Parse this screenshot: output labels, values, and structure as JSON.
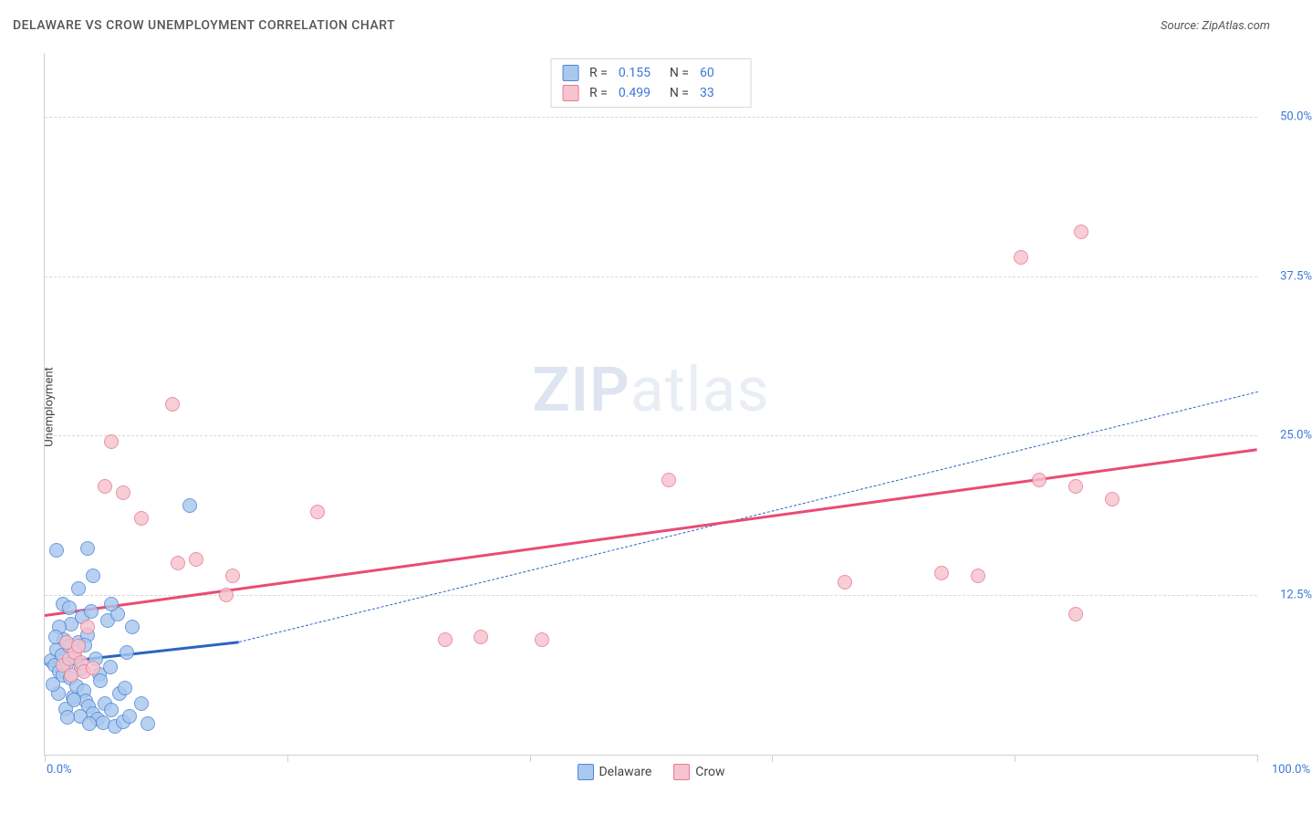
{
  "title": "DELAWARE VS CROW UNEMPLOYMENT CORRELATION CHART",
  "source": "Source: ZipAtlas.com",
  "watermark": {
    "part1": "ZIP",
    "part2": "atlas"
  },
  "ylabel": "Unemployment",
  "chart": {
    "type": "scatter",
    "xlim": [
      0,
      100
    ],
    "ylim": [
      0,
      55
    ],
    "x_ticks": [
      0,
      20,
      40,
      60,
      80,
      100
    ],
    "x_tick_labels_shown": {
      "0": "0.0%",
      "100": "100.0%"
    },
    "y_ticks": [
      12.5,
      25.0,
      37.5,
      50.0
    ],
    "y_tick_labels": [
      "12.5%",
      "25.0%",
      "37.5%",
      "50.0%"
    ],
    "background_color": "#ffffff",
    "grid_color": "#d8d8d8",
    "axis_color": "#d0d0d0",
    "tick_label_color": "#3b78d8",
    "point_radius": 8,
    "point_border_width": 1.5,
    "series": [
      {
        "name": "Delaware",
        "fill_color": "#a9c8ee",
        "border_color": "#4f86d6",
        "R": "0.155",
        "N": "60",
        "trend": {
          "x1": 0,
          "y1": 7.2,
          "x_solid_end": 16,
          "y_solid_end": 8.9,
          "x2": 100,
          "y2": 28.5,
          "color": "#2a63c2",
          "width": 3,
          "dash_after_solid": true
        },
        "points": [
          [
            0.5,
            7.4
          ],
          [
            0.8,
            7.0
          ],
          [
            1.0,
            8.2
          ],
          [
            1.2,
            6.5
          ],
          [
            1.4,
            7.8
          ],
          [
            1.5,
            6.2
          ],
          [
            1.6,
            9.0
          ],
          [
            1.8,
            7.1
          ],
          [
            2.0,
            8.5
          ],
          [
            2.1,
            6.0
          ],
          [
            2.2,
            10.2
          ],
          [
            2.3,
            4.5
          ],
          [
            2.5,
            7.6
          ],
          [
            2.6,
            5.4
          ],
          [
            2.8,
            8.8
          ],
          [
            3.0,
            6.7
          ],
          [
            3.1,
            10.8
          ],
          [
            3.2,
            5.0
          ],
          [
            3.4,
            4.2
          ],
          [
            3.5,
            9.4
          ],
          [
            3.6,
            3.8
          ],
          [
            3.8,
            11.2
          ],
          [
            4.0,
            3.2
          ],
          [
            4.2,
            7.5
          ],
          [
            4.4,
            2.8
          ],
          [
            4.5,
            6.3
          ],
          [
            4.8,
            2.5
          ],
          [
            5.0,
            4.0
          ],
          [
            5.2,
            10.5
          ],
          [
            5.5,
            3.5
          ],
          [
            5.8,
            2.2
          ],
          [
            6.0,
            11.0
          ],
          [
            6.2,
            4.8
          ],
          [
            6.5,
            2.6
          ],
          [
            6.8,
            8.0
          ],
          [
            7.0,
            3.0
          ],
          [
            1.0,
            16.0
          ],
          [
            3.5,
            16.2
          ],
          [
            4.0,
            14.0
          ],
          [
            1.5,
            11.8
          ],
          [
            2.0,
            11.5
          ],
          [
            5.5,
            11.8
          ],
          [
            8.0,
            4.0
          ],
          [
            8.5,
            2.4
          ],
          [
            7.2,
            10.0
          ],
          [
            2.8,
            13.0
          ],
          [
            1.2,
            10.0
          ],
          [
            0.9,
            9.2
          ],
          [
            1.7,
            3.6
          ],
          [
            2.9,
            3.0
          ],
          [
            3.3,
            8.6
          ],
          [
            12.0,
            19.5
          ],
          [
            4.6,
            5.8
          ],
          [
            5.4,
            6.9
          ],
          [
            6.6,
            5.2
          ],
          [
            1.1,
            4.8
          ],
          [
            0.7,
            5.5
          ],
          [
            1.9,
            2.9
          ],
          [
            3.7,
            2.4
          ],
          [
            2.4,
            4.3
          ]
        ]
      },
      {
        "name": "Crow",
        "fill_color": "#f6c3ce",
        "border_color": "#e77a95",
        "R": "0.499",
        "N": "33",
        "trend": {
          "x1": 0,
          "y1": 11.0,
          "x2": 100,
          "y2": 24.0,
          "color": "#ea4b74",
          "width": 3,
          "dash_after_solid": false
        },
        "points": [
          [
            1.5,
            7.0
          ],
          [
            2.0,
            7.5
          ],
          [
            2.5,
            8.0
          ],
          [
            1.8,
            8.8
          ],
          [
            2.8,
            8.5
          ],
          [
            3.0,
            7.2
          ],
          [
            3.5,
            10.0
          ],
          [
            5.0,
            21.0
          ],
          [
            5.5,
            24.5
          ],
          [
            6.5,
            20.5
          ],
          [
            10.5,
            27.5
          ],
          [
            8.0,
            18.5
          ],
          [
            11.0,
            15.0
          ],
          [
            12.5,
            15.3
          ],
          [
            15.5,
            14.0
          ],
          [
            15.0,
            12.5
          ],
          [
            22.5,
            19.0
          ],
          [
            33.0,
            9.0
          ],
          [
            36.0,
            9.2
          ],
          [
            41.0,
            9.0
          ],
          [
            51.5,
            21.5
          ],
          [
            66.0,
            13.5
          ],
          [
            74.0,
            14.2
          ],
          [
            77.0,
            14.0
          ],
          [
            82.0,
            21.5
          ],
          [
            85.0,
            21.0
          ],
          [
            80.5,
            39.0
          ],
          [
            85.5,
            41.0
          ],
          [
            88.0,
            20.0
          ],
          [
            85.0,
            11.0
          ],
          [
            3.2,
            6.5
          ],
          [
            4.0,
            6.8
          ],
          [
            2.2,
            6.2
          ]
        ]
      }
    ]
  },
  "legend_bottom": [
    {
      "label": "Delaware",
      "fill": "#a9c8ee",
      "border": "#4f86d6"
    },
    {
      "label": "Crow",
      "fill": "#f6c3ce",
      "border": "#e77a95"
    }
  ]
}
